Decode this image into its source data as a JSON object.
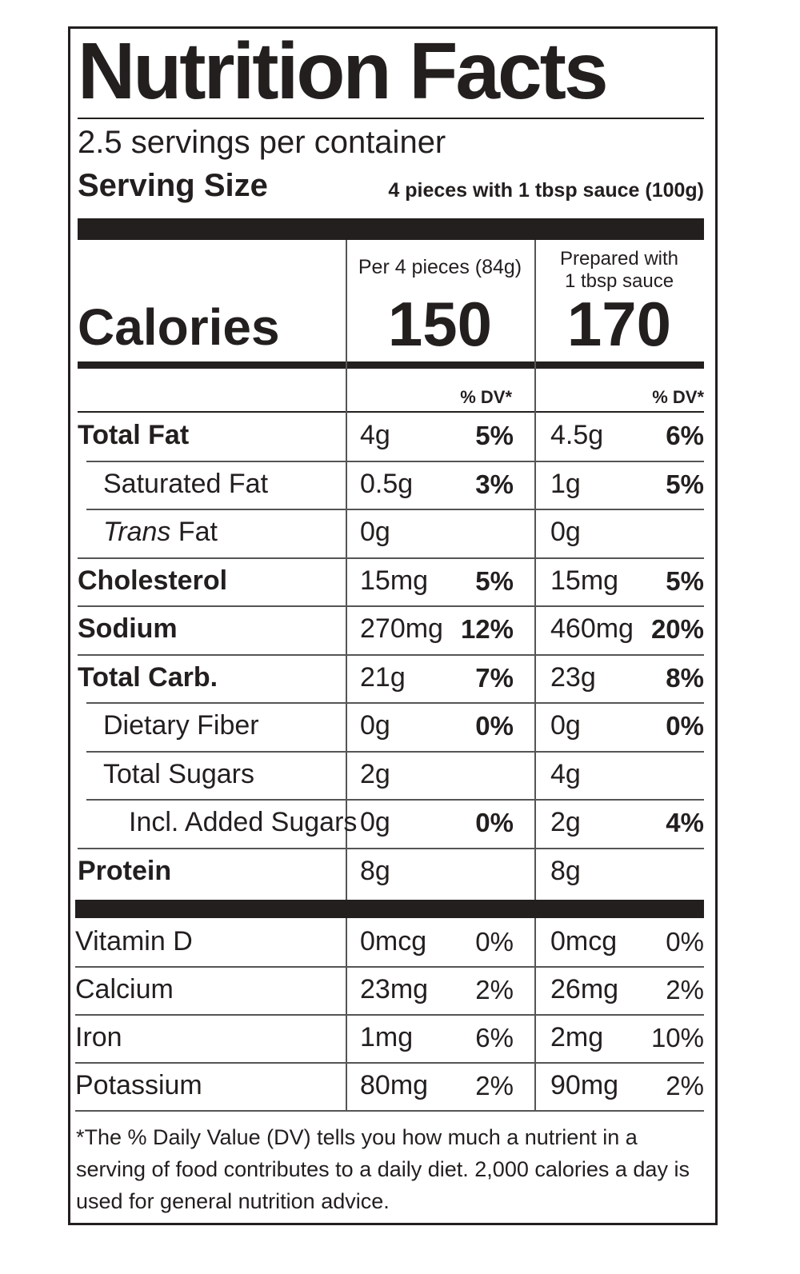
{
  "header": {
    "title": "Nutrition Facts",
    "servings": "2.5 servings per container",
    "serving_size_label": "Serving Size",
    "serving_size_value": "4 pieces with 1 tbsp sauce (100g)"
  },
  "calories": {
    "label": "Calories",
    "col_a_header": "Per 4 pieces (84g)",
    "col_a_value": "150",
    "col_b_header": [
      "Prepared with",
      "1 tbsp sauce"
    ],
    "col_b_value": "170",
    "dv_header_a": "% DV*",
    "dv_header_b": "% DV*"
  },
  "nutrients": [
    {
      "name": "Total Fat",
      "a": "4g",
      "a_dv": "5%",
      "b": "4.5g",
      "b_dv": "6%"
    },
    {
      "name": "Saturated Fat",
      "a": "0.5g",
      "a_dv": "3%",
      "b": "1g",
      "b_dv": "5%"
    },
    {
      "name_italic": "Trans",
      "name": "Fat",
      "a": "0g",
      "b": "0g"
    },
    {
      "name": "Cholesterol",
      "a": "15mg",
      "a_dv": "5%",
      "b": "15mg",
      "b_dv": "5%"
    },
    {
      "name": "Sodium",
      "a": "270mg",
      "a_dv": "12%",
      "b": "460mg",
      "b_dv": "20%"
    },
    {
      "name": "Total Carb.",
      "a": "21g",
      "a_dv": "7%",
      "b": "23g",
      "b_dv": "8%"
    },
    {
      "name": "Dietary Fiber",
      "a": "0g",
      "a_dv": "0%",
      "b": "0g",
      "b_dv": "0%"
    },
    {
      "name": "Total Sugars",
      "a": "2g",
      "b": "4g"
    },
    {
      "name": "Incl. Added Sugars",
      "a": "0g",
      "a_dv": "0%",
      "b": "2g",
      "b_dv": "4%"
    },
    {
      "name": "Protein",
      "a": "8g",
      "b": "8g"
    }
  ],
  "vitamins": [
    {
      "name": "Vitamin D",
      "a": "0mcg",
      "a_dv": "0%",
      "b": "0mcg",
      "b_dv": "0%"
    },
    {
      "name": "Calcium",
      "a": "23mg",
      "a_dv": "2%",
      "b": "26mg",
      "b_dv": "2%"
    },
    {
      "name": "Iron",
      "a": "1mg",
      "a_dv": "6%",
      "b": "2mg",
      "b_dv": "10%"
    },
    {
      "name": "Potassium",
      "a": "80mg",
      "a_dv": "2%",
      "b": "90mg",
      "b_dv": "2%"
    }
  ],
  "footnote": "*The % Daily Value (DV) tells you how much a nutrient in a serving of food contributes to a daily diet. 2,000 calories a day is used for general nutrition advice."
}
